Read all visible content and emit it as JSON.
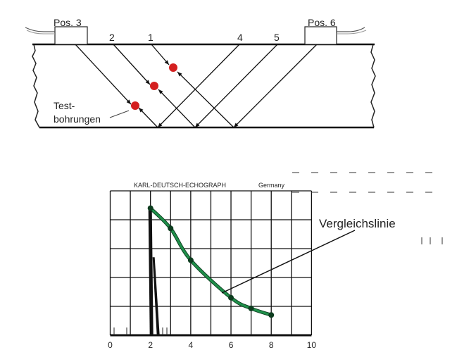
{
  "top_diagram": {
    "probe_left_label": "Pos. 3",
    "probe_right_label": "Pos. 6",
    "beam_labels": [
      "2",
      "1",
      "4",
      "5"
    ],
    "test_holes_label_line1": "Test-",
    "test_holes_label_line2": "bohrungen",
    "test_hole_color": "#d42020"
  },
  "chart_data": {
    "type": "line",
    "title": "KARL-DEUTSCH-ECHOGRAPH",
    "subtitle": "Germany",
    "annotation": "Vergleichslinie",
    "xlabel": "",
    "ylabel": "",
    "xlim": [
      0,
      10
    ],
    "ylim": [
      0,
      5
    ],
    "x_ticks": [
      "0",
      "2",
      "4",
      "6",
      "8",
      "10"
    ],
    "grid": true,
    "series": [
      {
        "color": "#1f8f4a",
        "x": [
          2,
          3,
          4,
          6,
          7,
          8
        ],
        "y": [
          4.4,
          3.7,
          2.6,
          1.3,
          0.93,
          0.7
        ]
      }
    ],
    "echo_peak": {
      "x": 2,
      "y": 4.4
    }
  }
}
